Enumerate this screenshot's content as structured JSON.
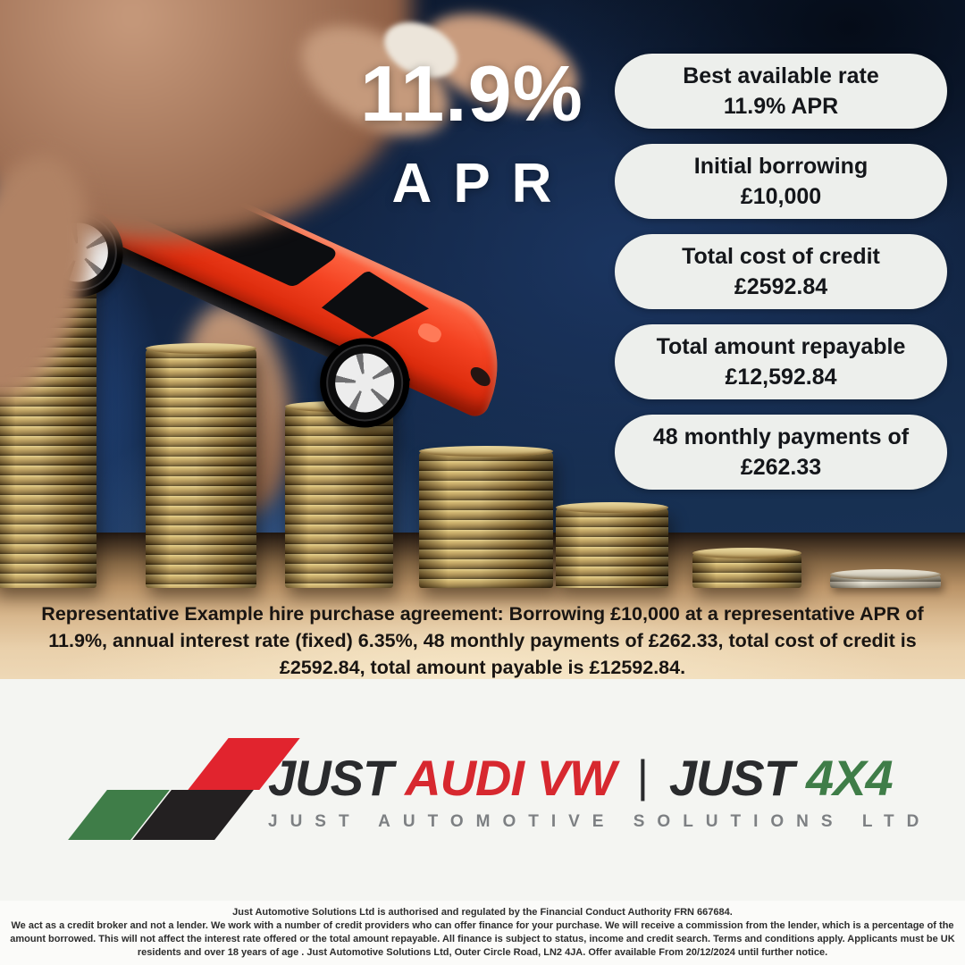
{
  "headline": {
    "rate": "11.9%",
    "label": "APR"
  },
  "pills": [
    {
      "line1": "Best available rate",
      "line2": "11.9% APR"
    },
    {
      "line1": "Initial borrowing",
      "line2": "£10,000"
    },
    {
      "line1": "Total cost of credit",
      "line2": "£2592.84"
    },
    {
      "line1": "Total amount repayable",
      "line2": "£12,592.84"
    },
    {
      "line1": "48 monthly payments of",
      "line2": "£262.33"
    }
  ],
  "representative_example": "Representative Example hire purchase agreement: Borrowing £10,000 at a representative APR of 11.9%, annual interest rate (fixed) 6.35%, 48 monthly payments of £262.33, total cost of credit is £2592.84, total amount payable is £12592.84.",
  "logo": {
    "brand_part1": "JUST",
    "brand_part2": "AUDI VW",
    "separator": "|",
    "brand_part3": "JUST",
    "brand_part4": "4X4",
    "subtitle": "JUST AUTOMOTIVE SOLUTIONS LTD"
  },
  "fine_print": {
    "line1": "Just Automotive Solutions Ltd is authorised and regulated by the Financial Conduct Authority FRN 667684.",
    "body": "We act as a credit broker and not a lender. We work with a number of credit providers who can offer finance for your purchase. We will receive a commission from the lender, which is a percentage of the amount borrowed. This will not affect the interest rate offered or the total amount repayable. All finance is subject to status, income and credit search. Terms and conditions apply. Applicants must be UK residents and over 18 years of age . Just Automotive Solutions Ltd, Outer Circle Road, LN2 4JA. Offer available From 20/12/2024 until further notice."
  },
  "colors": {
    "navy_background": "#12233f",
    "pill_background": "#edefec",
    "car_red": "#f0391b",
    "coin_gold": "#b79a55",
    "table_tan": "#e2c49c",
    "brand_red": "#d7282f",
    "brand_green": "#3f7d48",
    "brand_black": "#232021",
    "subtitle_gray": "#7d8083"
  }
}
